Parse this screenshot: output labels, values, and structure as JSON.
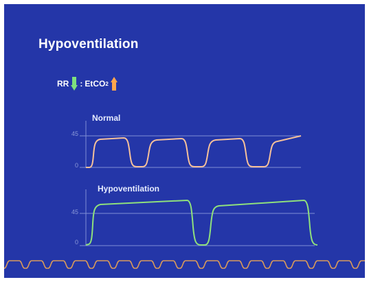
{
  "slide": {
    "title": "Hypoventilation",
    "formula": {
      "left": "RR",
      "separator": ":",
      "right_main": "EtCO",
      "right_sub": "2",
      "left_arrow_color": "#7ee07e",
      "right_arrow_color": "#ffa64d"
    }
  },
  "chart_data": [
    {
      "type": "line",
      "title": "Normal",
      "y_ticks": [
        "45",
        "0"
      ],
      "ylim": [
        0,
        60
      ],
      "series": [
        {
          "color": "#f6c19a"
        }
      ]
    },
    {
      "type": "line",
      "title": "Hypoventilation",
      "y_ticks": [
        "45",
        "0"
      ],
      "ylim": [
        0,
        60
      ],
      "series": [
        {
          "color": "#8fe07c"
        }
      ]
    }
  ],
  "colors": {
    "background": "#2436a8",
    "axis": "#7f8fd6",
    "bottom_wave": "#d99a5a"
  }
}
